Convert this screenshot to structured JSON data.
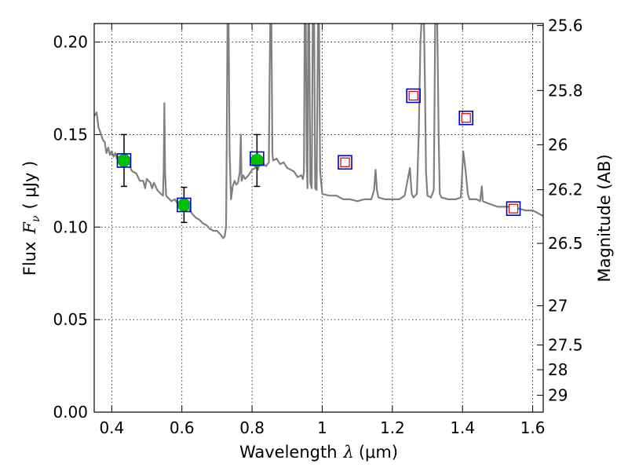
{
  "chart_data": {
    "type": "scatter",
    "xlabel": "Wavelength",
    "xlabel_math": "λ",
    "xlabel_unit": "(μm)",
    "ylabel": "Flux",
    "ylabel_math": "F",
    "ylabel_math_sub": "ν",
    "ylabel_unit": "( μJy )",
    "y2label": "Magnitude (AB)",
    "xlim": [
      0.35,
      1.63
    ],
    "ylim": [
      0.0,
      0.21
    ],
    "grid": true,
    "xticks": [
      0.4,
      0.6,
      0.8,
      1.0,
      1.2,
      1.4,
      1.6
    ],
    "xtick_labels": [
      "0.4",
      "0.6",
      "0.8",
      "1",
      "1.2",
      "1.4",
      "1.6"
    ],
    "yticks": [
      0.0,
      0.05,
      0.1,
      0.15,
      0.2
    ],
    "ytick_labels": [
      "0.00",
      "0.05",
      "0.10",
      "0.15",
      "0.20"
    ],
    "y2ticks": [
      {
        "label": "25.6",
        "flux": 0.2089
      },
      {
        "label": "25.8",
        "flux": 0.1738
      },
      {
        "label": "26",
        "flux": 0.1445
      },
      {
        "label": "26.2",
        "flux": 0.1202
      },
      {
        "label": "26.5",
        "flux": 0.0912
      },
      {
        "label": "27",
        "flux": 0.0575
      },
      {
        "label": "27.5",
        "flux": 0.0363
      },
      {
        "label": "28",
        "flux": 0.0229
      },
      {
        "label": "29",
        "flux": 0.0091
      }
    ],
    "model_spectrum": {
      "color": "#808080",
      "points": [
        [
          0.35,
          0.16
        ],
        [
          0.357,
          0.162
        ],
        [
          0.362,
          0.154
        ],
        [
          0.368,
          0.151
        ],
        [
          0.375,
          0.147
        ],
        [
          0.38,
          0.146
        ],
        [
          0.385,
          0.14
        ],
        [
          0.39,
          0.143
        ],
        [
          0.395,
          0.139
        ],
        [
          0.4,
          0.141
        ],
        [
          0.405,
          0.138
        ],
        [
          0.41,
          0.14
        ],
        [
          0.415,
          0.137
        ],
        [
          0.42,
          0.138
        ],
        [
          0.43,
          0.135
        ],
        [
          0.44,
          0.133
        ],
        [
          0.45,
          0.136
        ],
        [
          0.455,
          0.131
        ],
        [
          0.46,
          0.13
        ],
        [
          0.47,
          0.129
        ],
        [
          0.48,
          0.125
        ],
        [
          0.49,
          0.125
        ],
        [
          0.495,
          0.121
        ],
        [
          0.5,
          0.126
        ],
        [
          0.51,
          0.124
        ],
        [
          0.515,
          0.121
        ],
        [
          0.52,
          0.124
        ],
        [
          0.53,
          0.12
        ],
        [
          0.54,
          0.118
        ],
        [
          0.546,
          0.117
        ],
        [
          0.548,
          0.13
        ],
        [
          0.55,
          0.167
        ],
        [
          0.552,
          0.13
        ],
        [
          0.555,
          0.117
        ],
        [
          0.56,
          0.116
        ],
        [
          0.57,
          0.114
        ],
        [
          0.58,
          0.115
        ],
        [
          0.59,
          0.112
        ],
        [
          0.6,
          0.112
        ],
        [
          0.61,
          0.109
        ],
        [
          0.62,
          0.11
        ],
        [
          0.63,
          0.107
        ],
        [
          0.64,
          0.105
        ],
        [
          0.65,
          0.104
        ],
        [
          0.66,
          0.102
        ],
        [
          0.67,
          0.101
        ],
        [
          0.68,
          0.099
        ],
        [
          0.69,
          0.098
        ],
        [
          0.7,
          0.098
        ],
        [
          0.71,
          0.096
        ],
        [
          0.718,
          0.094
        ],
        [
          0.722,
          0.095
        ],
        [
          0.726,
          0.1
        ],
        [
          0.728,
          0.15
        ],
        [
          0.73,
          0.21
        ],
        [
          0.733,
          0.21
        ],
        [
          0.736,
          0.14
        ],
        [
          0.74,
          0.115
        ],
        [
          0.745,
          0.122
        ],
        [
          0.75,
          0.125
        ],
        [
          0.755,
          0.123
        ],
        [
          0.76,
          0.124
        ],
        [
          0.765,
          0.13
        ],
        [
          0.768,
          0.15
        ],
        [
          0.77,
          0.125
        ],
        [
          0.775,
          0.128
        ],
        [
          0.78,
          0.126
        ],
        [
          0.79,
          0.128
        ],
        [
          0.8,
          0.131
        ],
        [
          0.81,
          0.132
        ],
        [
          0.815,
          0.14
        ],
        [
          0.817,
          0.131
        ],
        [
          0.82,
          0.134
        ],
        [
          0.83,
          0.134
        ],
        [
          0.84,
          0.133
        ],
        [
          0.848,
          0.135
        ],
        [
          0.85,
          0.18
        ],
        [
          0.852,
          0.21
        ],
        [
          0.855,
          0.21
        ],
        [
          0.858,
          0.14
        ],
        [
          0.86,
          0.136
        ],
        [
          0.87,
          0.137
        ],
        [
          0.88,
          0.134
        ],
        [
          0.89,
          0.135
        ],
        [
          0.9,
          0.132
        ],
        [
          0.91,
          0.131
        ],
        [
          0.92,
          0.13
        ],
        [
          0.93,
          0.127
        ],
        [
          0.94,
          0.128
        ],
        [
          0.945,
          0.126
        ],
        [
          0.948,
          0.13
        ],
        [
          0.95,
          0.21
        ],
        [
          0.953,
          0.21
        ],
        [
          0.956,
          0.135
        ],
        [
          0.958,
          0.121
        ],
        [
          0.96,
          0.21
        ],
        [
          0.963,
          0.21
        ],
        [
          0.966,
          0.124
        ],
        [
          0.97,
          0.121
        ],
        [
          0.973,
          0.21
        ],
        [
          0.977,
          0.21
        ],
        [
          0.98,
          0.121
        ],
        [
          0.984,
          0.12
        ],
        [
          0.988,
          0.21
        ],
        [
          0.991,
          0.21
        ],
        [
          0.994,
          0.13
        ],
        [
          1.0,
          0.118
        ],
        [
          1.02,
          0.117
        ],
        [
          1.04,
          0.117
        ],
        [
          1.06,
          0.115
        ],
        [
          1.08,
          0.115
        ],
        [
          1.1,
          0.114
        ],
        [
          1.12,
          0.115
        ],
        [
          1.14,
          0.115
        ],
        [
          1.148,
          0.12
        ],
        [
          1.152,
          0.131
        ],
        [
          1.156,
          0.12
        ],
        [
          1.16,
          0.116
        ],
        [
          1.18,
          0.115
        ],
        [
          1.2,
          0.115
        ],
        [
          1.22,
          0.115
        ],
        [
          1.235,
          0.117
        ],
        [
          1.245,
          0.127
        ],
        [
          1.25,
          0.132
        ],
        [
          1.255,
          0.118
        ],
        [
          1.26,
          0.116
        ],
        [
          1.27,
          0.118
        ],
        [
          1.275,
          0.15
        ],
        [
          1.28,
          0.2
        ],
        [
          1.283,
          0.21
        ],
        [
          1.29,
          0.21
        ],
        [
          1.293,
          0.175
        ],
        [
          1.296,
          0.13
        ],
        [
          1.3,
          0.117
        ],
        [
          1.31,
          0.116
        ],
        [
          1.318,
          0.12
        ],
        [
          1.322,
          0.21
        ],
        [
          1.328,
          0.21
        ],
        [
          1.332,
          0.15
        ],
        [
          1.335,
          0.118
        ],
        [
          1.34,
          0.116
        ],
        [
          1.36,
          0.115
        ],
        [
          1.38,
          0.115
        ],
        [
          1.395,
          0.116
        ],
        [
          1.398,
          0.125
        ],
        [
          1.402,
          0.141
        ],
        [
          1.406,
          0.135
        ],
        [
          1.41,
          0.128
        ],
        [
          1.415,
          0.118
        ],
        [
          1.42,
          0.115
        ],
        [
          1.44,
          0.115
        ],
        [
          1.45,
          0.114
        ],
        [
          1.455,
          0.122
        ],
        [
          1.458,
          0.114
        ],
        [
          1.47,
          0.113
        ],
        [
          1.5,
          0.111
        ],
        [
          1.53,
          0.111
        ],
        [
          1.56,
          0.11
        ],
        [
          1.58,
          0.109
        ],
        [
          1.6,
          0.109
        ],
        [
          1.61,
          0.108
        ],
        [
          1.62,
          0.107
        ],
        [
          1.63,
          0.106
        ]
      ]
    },
    "observed": {
      "color": "#00c000",
      "points": [
        {
          "x": 0.435,
          "y": 0.136,
          "err": 0.014
        },
        {
          "x": 0.606,
          "y": 0.112,
          "err": 0.0095
        },
        {
          "x": 0.814,
          "y": 0.136,
          "err": 0.014
        }
      ]
    },
    "model_photometry": {
      "edge_color": "#0000cc",
      "points": [
        {
          "x": 0.435,
          "y": 0.136
        },
        {
          "x": 0.606,
          "y": 0.112
        },
        {
          "x": 0.814,
          "y": 0.137
        },
        {
          "x": 1.065,
          "y": 0.135
        },
        {
          "x": 1.26,
          "y": 0.171
        },
        {
          "x": 1.41,
          "y": 0.159
        },
        {
          "x": 1.545,
          "y": 0.11
        }
      ]
    },
    "upper_photometry": {
      "edge_color": "#cc0000",
      "points": [
        {
          "x": 1.065,
          "y": 0.135
        },
        {
          "x": 1.26,
          "y": 0.171
        },
        {
          "x": 1.41,
          "y": 0.159
        },
        {
          "x": 1.545,
          "y": 0.11
        }
      ]
    }
  }
}
